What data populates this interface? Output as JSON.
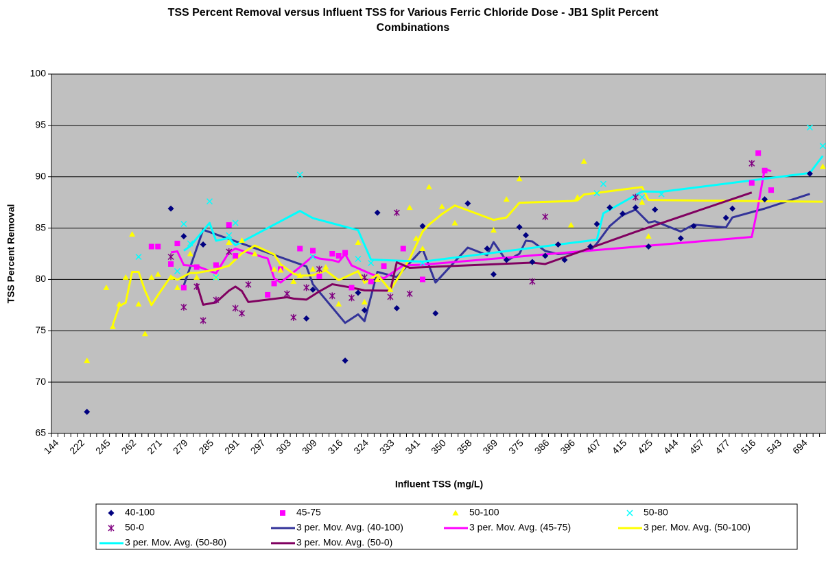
{
  "chart_data": {
    "type": "line_scatter",
    "title": "TSS Percent Removal versus Influent TSS for Various Ferric Chloride Dose - JB1 Split Percent Combinations",
    "x_label": "Influent TSS (mg/L)",
    "y_label": "TSS Percent Removal",
    "ylim": [
      65,
      100
    ],
    "yticks": [
      65,
      70,
      75,
      80,
      85,
      90,
      95,
      100
    ],
    "grid": true,
    "categories": [
      "144",
      null,
      null,
      null,
      "222",
      null,
      null,
      null,
      "245",
      null,
      null,
      null,
      "262",
      null,
      null,
      null,
      "271",
      null,
      null,
      null,
      "279",
      null,
      null,
      null,
      "285",
      null,
      null,
      null,
      "291",
      null,
      null,
      null,
      "297",
      null,
      null,
      null,
      "303",
      null,
      null,
      null,
      "309",
      null,
      null,
      null,
      "316",
      null,
      null,
      null,
      "324",
      null,
      null,
      null,
      "333",
      null,
      null,
      null,
      "341",
      null,
      null,
      null,
      "350",
      null,
      null,
      null,
      "358",
      null,
      null,
      null,
      "369",
      null,
      null,
      null,
      "375",
      null,
      null,
      null,
      "386",
      null,
      null,
      null,
      "396",
      null,
      null,
      null,
      "407",
      null,
      null,
      null,
      "415",
      null,
      null,
      null,
      "425",
      null,
      null,
      null,
      "444",
      null,
      null,
      null,
      "457",
      null,
      null,
      null,
      "477",
      null,
      null,
      null,
      "516",
      null,
      null,
      null,
      "543",
      null,
      null,
      null,
      "694",
      null,
      null,
      null
    ],
    "series": [
      {
        "name": "40-100",
        "color": "#000080",
        "marker": "diamond",
        "trendline": {
          "name": "3 per. Mov. Avg. (40-100)",
          "color": "#333399",
          "period": 3
        },
        "values": [
          null,
          null,
          null,
          null,
          null,
          67.1,
          null,
          null,
          null,
          null,
          null,
          null,
          null,
          null,
          null,
          null,
          null,
          null,
          86.9,
          null,
          84.2,
          null,
          null,
          83.4,
          null,
          null,
          null,
          null,
          null,
          null,
          null,
          null,
          null,
          null,
          null,
          null,
          null,
          null,
          null,
          76.2,
          79,
          null,
          null,
          null,
          null,
          72.1,
          null,
          78.7,
          77,
          null,
          86.5,
          null,
          null,
          77.2,
          null,
          null,
          null,
          85.2,
          null,
          76.7,
          null,
          null,
          null,
          null,
          87.4,
          null,
          null,
          83,
          80.5,
          null,
          81.9,
          null,
          85.1,
          84.3,
          81.7,
          null,
          82.3,
          null,
          83.4,
          81.9,
          null,
          null,
          null,
          83.2,
          85.4,
          null,
          87,
          null,
          86.4,
          null,
          87,
          null,
          83.2,
          86.8,
          null,
          null,
          null,
          84,
          null,
          85.2,
          null,
          null,
          null,
          null,
          86,
          86.9,
          null,
          null,
          null,
          null,
          87.8,
          null,
          null,
          null,
          null,
          null,
          null,
          90.3,
          null,
          null
        ]
      },
      {
        "name": "45-75",
        "color": "#ff00ff",
        "marker": "square",
        "trendline": {
          "name": "3 per. Mov. Avg. (45-75)",
          "color": "#ff00ff",
          "period": 3
        },
        "values": [
          null,
          null,
          null,
          null,
          null,
          null,
          null,
          null,
          null,
          null,
          null,
          null,
          null,
          null,
          null,
          83.2,
          83.2,
          null,
          81.5,
          83.5,
          79.2,
          null,
          81.2,
          null,
          null,
          81.4,
          null,
          85.3,
          82.3,
          null,
          null,
          null,
          null,
          78.5,
          79.6,
          81,
          null,
          null,
          83,
          null,
          82.8,
          80.3,
          null,
          82.5,
          82.3,
          82.6,
          79.2,
          null,
          null,
          79.8,
          null,
          81.3,
          null,
          null,
          83,
          null,
          null,
          80,
          null,
          null,
          null,
          null,
          null,
          null,
          null,
          null,
          null,
          null,
          null,
          null,
          null,
          null,
          null,
          null,
          null,
          null,
          null,
          null,
          null,
          null,
          null,
          null,
          null,
          null,
          null,
          null,
          null,
          null,
          null,
          null,
          null,
          null,
          null,
          null,
          null,
          null,
          null,
          null,
          null,
          null,
          null,
          null,
          null,
          null,
          null,
          null,
          null,
          null,
          89.4,
          92.3,
          90.6,
          88.7,
          null,
          null,
          null,
          null,
          null,
          null,
          null,
          null
        ]
      },
      {
        "name": "50-100",
        "color": "#ffff00",
        "marker": "triangle",
        "trendline": {
          "name": "3 per. Mov. Avg. (50-100)",
          "color": "#ffff00",
          "period": 3
        },
        "values": [
          null,
          null,
          null,
          null,
          null,
          72.1,
          null,
          null,
          79.2,
          75.4,
          77.6,
          80.2,
          84.4,
          77.6,
          74.7,
          80.2,
          80.5,
          null,
          80.2,
          79.2,
          null,
          82.5,
          80.2,
          null,
          null,
          80.2,
          null,
          83.6,
          null,
          83.8,
          null,
          82.5,
          null,
          null,
          81,
          80.9,
          null,
          79.8,
          80.4,
          null,
          81,
          null,
          81.2,
          null,
          77.6,
          null,
          null,
          83.6,
          77.8,
          null,
          80,
          null,
          79,
          null,
          null,
          87,
          84,
          83,
          89,
          null,
          87.1,
          null,
          85.5,
          null,
          null,
          null,
          null,
          null,
          84.8,
          null,
          87.8,
          null,
          89.8,
          null,
          null,
          null,
          null,
          null,
          null,
          null,
          85.3,
          88,
          91.5,
          null,
          null,
          null,
          null,
          null,
          null,
          null,
          null,
          87.5,
          84.2,
          null,
          null,
          null,
          null,
          null,
          null,
          null,
          null,
          null,
          null,
          null,
          null,
          null,
          null,
          null,
          null,
          null,
          null,
          null,
          null,
          null,
          null,
          null,
          null,
          null,
          null,
          91
        ]
      },
      {
        "name": "50-80",
        "color": "#00ffff",
        "marker": "x",
        "trendline": {
          "name": "3 per. Mov. Avg. (50-80)",
          "color": "#00ffff",
          "period": 3
        },
        "values": [
          null,
          null,
          null,
          null,
          null,
          null,
          null,
          null,
          null,
          null,
          null,
          null,
          null,
          82.2,
          null,
          null,
          null,
          null,
          null,
          80.8,
          85.4,
          83.5,
          null,
          null,
          87.6,
          80.2,
          null,
          84.3,
          85.5,
          null,
          null,
          null,
          null,
          null,
          null,
          null,
          null,
          null,
          90.2,
          null,
          82.2,
          null,
          null,
          null,
          null,
          null,
          null,
          82,
          null,
          81.6,
          null,
          null,
          null,
          null,
          null,
          null,
          null,
          81.6,
          null,
          null,
          null,
          null,
          null,
          null,
          null,
          null,
          null,
          null,
          null,
          null,
          null,
          null,
          null,
          null,
          null,
          null,
          null,
          null,
          null,
          null,
          null,
          null,
          null,
          null,
          88.4,
          89.3,
          null,
          null,
          null,
          null,
          null,
          88,
          null,
          null,
          88.3,
          null,
          null,
          null,
          null,
          null,
          null,
          null,
          null,
          null,
          null,
          null,
          null,
          null,
          null,
          null,
          null,
          null,
          null,
          null,
          null,
          null,
          null,
          94.8,
          null,
          93
        ]
      },
      {
        "name": "50-0",
        "color": "#800080",
        "marker": "asterisk",
        "trendline": {
          "name": "3 per. Mov. Avg. (50-0)",
          "color": "#800060",
          "period": 3
        },
        "values": [
          null,
          null,
          null,
          null,
          null,
          null,
          null,
          null,
          null,
          null,
          null,
          null,
          null,
          null,
          null,
          null,
          null,
          null,
          82.2,
          null,
          77.3,
          null,
          79.3,
          76,
          null,
          78,
          null,
          82.7,
          77.2,
          76.7,
          79.5,
          null,
          null,
          null,
          null,
          null,
          78.6,
          76.3,
          null,
          79.2,
          null,
          81,
          null,
          78.4,
          null,
          null,
          78.2,
          null,
          80.2,
          null,
          null,
          null,
          78.3,
          86.5,
          null,
          78.6,
          null,
          null,
          null,
          null,
          null,
          null,
          null,
          null,
          null,
          null,
          null,
          null,
          null,
          null,
          null,
          null,
          null,
          null,
          79.8,
          null,
          86.1,
          null,
          null,
          null,
          null,
          null,
          null,
          null,
          null,
          null,
          null,
          null,
          null,
          null,
          88,
          null,
          null,
          null,
          null,
          null,
          null,
          null,
          null,
          null,
          null,
          null,
          null,
          null,
          null,
          null,
          null,
          null,
          91.3,
          null,
          null,
          null,
          null,
          null,
          null,
          null,
          null,
          null,
          null,
          null
        ]
      }
    ]
  }
}
